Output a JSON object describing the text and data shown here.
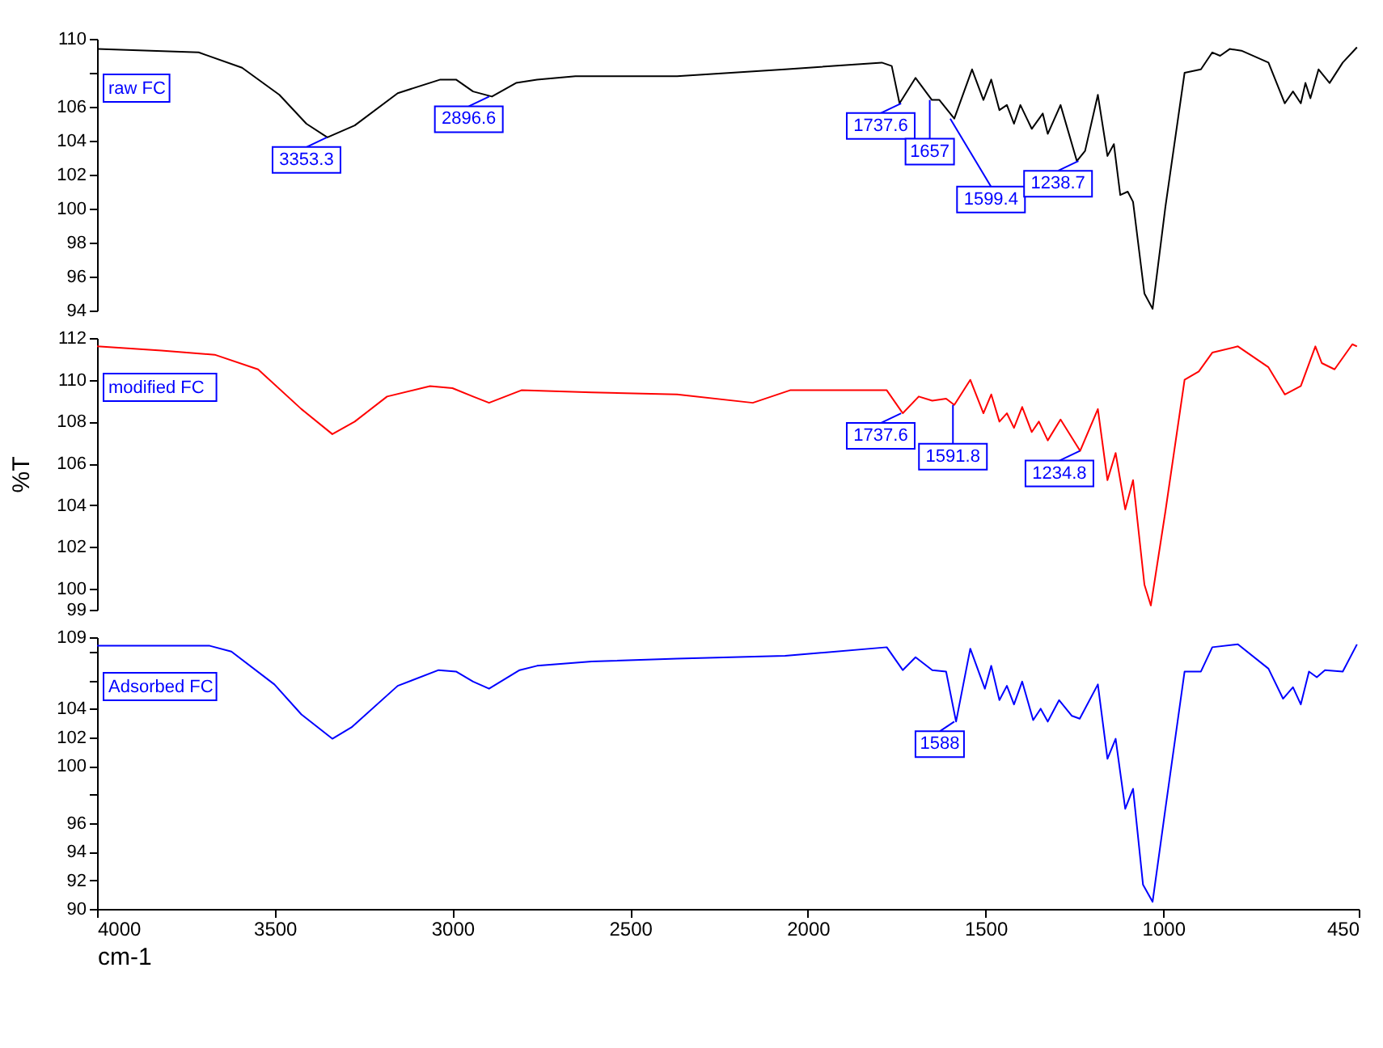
{
  "chart_data": [
    {
      "type": "line",
      "tick_labels": "y",
      "xlim": [
        4000,
        450
      ],
      "xticks": [
        4000,
        3500,
        3000,
        2500,
        2000,
        1500,
        1000,
        450
      ],
      "ylim": [
        94,
        110
      ],
      "yticks": [
        94,
        96,
        98,
        100,
        102,
        104,
        106,
        {
          "value": 108,
          "label": null
        },
        110
      ],
      "series": [
        {
          "name": "raw FC",
          "color": "#000000",
          "x": [
            4000,
            3714,
            3592,
            3487,
            3411,
            3352,
            3275,
            3154,
            3034,
            2990,
            2942,
            2889,
            2821,
            2762,
            2654,
            2368,
            2064,
            1792,
            1764,
            1742,
            1697,
            1651,
            1630,
            1588,
            1538,
            1506,
            1484,
            1461,
            1440,
            1420,
            1402,
            1370,
            1339,
            1325,
            1289,
            1243,
            1220,
            1184,
            1157,
            1139,
            1121,
            1100,
            1085,
            1053,
            1030,
            994,
            940,
            894,
            862,
            840,
            813,
            780,
            704,
            658,
            635,
            613,
            600,
            586,
            563,
            532,
            495,
            455
          ],
          "values": [
            109.4,
            109.2,
            108.3,
            106.7,
            105.0,
            104.2,
            104.9,
            106.8,
            107.6,
            107.6,
            106.9,
            106.6,
            107.4,
            107.6,
            107.8,
            107.8,
            108.2,
            108.6,
            108.4,
            106.2,
            107.7,
            106.4,
            106.4,
            105.3,
            108.2,
            106.4,
            107.6,
            105.8,
            106.1,
            105.0,
            106.1,
            104.7,
            105.6,
            104.4,
            106.1,
            102.8,
            103.4,
            106.7,
            103.1,
            103.8,
            100.8,
            101.0,
            100.4,
            95.0,
            94.1,
            100.1,
            108.0,
            108.2,
            109.2,
            109.0,
            109.4,
            109.3,
            108.6,
            106.2,
            106.9,
            106.2,
            107.4,
            106.5,
            108.2,
            107.4,
            108.6,
            109.5
          ]
        }
      ],
      "annotations": [
        {
          "text": "3353.3",
          "x": 3353.3,
          "y": 104.2
        },
        {
          "text": "2896.6",
          "x": 2896.6,
          "y": 106.6
        },
        {
          "text": "1737.6",
          "x": 1737.6,
          "y": 106.2
        },
        {
          "text": "1657",
          "x": 1657,
          "y": 106.4
        },
        {
          "text": "1599.4",
          "x": 1599.4,
          "y": 105.3
        },
        {
          "text": "1238.7",
          "x": 1238.7,
          "y": 102.8
        }
      ]
    },
    {
      "type": "line",
      "tick_labels": "y",
      "ylabel": "%T",
      "xlim": [
        4000,
        450
      ],
      "xticks": [
        4000,
        3500,
        3000,
        2500,
        2000,
        1500,
        1000,
        450
      ],
      "ylim": [
        99,
        112
      ],
      "yticks": [
        99,
        100,
        102,
        104,
        106,
        108,
        110,
        112
      ],
      "series": [
        {
          "name": "modified FC",
          "color": "#ff0000",
          "x": [
            4000,
            3819,
            3669,
            3547,
            3425,
            3338,
            3275,
            3184,
            3063,
            3000,
            2942,
            2897,
            2806,
            2608,
            2368,
            2155,
            2050,
            1778,
            1733,
            1688,
            1650,
            1611,
            1588,
            1543,
            1506,
            1484,
            1461,
            1440,
            1420,
            1397,
            1370,
            1350,
            1325,
            1289,
            1234,
            1184,
            1157,
            1134,
            1107,
            1085,
            1053,
            1035,
            994,
            940,
            900,
            862,
            790,
            704,
            658,
            613,
            572,
            554,
            518,
            468,
            455
          ],
          "values": [
            111.6,
            111.4,
            111.2,
            110.5,
            108.6,
            107.4,
            108.0,
            109.2,
            109.7,
            109.6,
            109.2,
            108.9,
            109.5,
            109.4,
            109.3,
            108.9,
            109.5,
            109.5,
            108.4,
            109.2,
            109.0,
            109.1,
            108.8,
            110.0,
            108.4,
            109.3,
            108.0,
            108.4,
            107.7,
            108.7,
            107.5,
            108.0,
            107.1,
            108.1,
            106.6,
            108.6,
            105.2,
            106.5,
            103.8,
            105.2,
            100.2,
            99.2,
            103.7,
            110.0,
            110.4,
            111.3,
            111.6,
            110.6,
            109.3,
            109.7,
            111.6,
            110.8,
            110.5,
            111.7,
            111.6
          ]
        }
      ],
      "annotations": [
        {
          "text": "1737.6",
          "x": 1737.6,
          "y": 108.4
        },
        {
          "text": "1591.8",
          "x": 1591.8,
          "y": 108.8
        },
        {
          "text": "1234.8",
          "x": 1234.8,
          "y": 106.6
        }
      ]
    },
    {
      "type": "line",
      "xlabel": "cm-1",
      "xlim": [
        4000,
        450
      ],
      "xticks": [
        4000,
        3500,
        3000,
        2500,
        2000,
        1500,
        1000,
        450
      ],
      "ylim": [
        90,
        109
      ],
      "yticks": [
        90,
        92,
        94,
        96,
        {
          "value": 98,
          "label": null
        },
        100,
        102,
        104,
        {
          "value": 106,
          "label": null
        },
        {
          "value": 108,
          "label": null
        },
        109
      ],
      "series": [
        {
          "name": "Adsorbed FC",
          "color": "#0000ff",
          "x": [
            4000,
            3683,
            3622,
            3501,
            3425,
            3338,
            3284,
            3154,
            3039,
            2990,
            2942,
            2897,
            2811,
            2762,
            2608,
            2368,
            2064,
            1778,
            1733,
            1697,
            1650,
            1611,
            1583,
            1543,
            1502,
            1484,
            1461,
            1440,
            1420,
            1397,
            1366,
            1345,
            1325,
            1293,
            1257,
            1235,
            1184,
            1157,
            1134,
            1107,
            1085,
            1057,
            1030,
            994,
            940,
            894,
            862,
            790,
            704,
            663,
            635,
            613,
            590,
            568,
            545,
            495,
            455
          ],
          "values": [
            108.4,
            108.4,
            108.0,
            105.7,
            103.6,
            101.9,
            102.7,
            105.6,
            106.7,
            106.6,
            105.9,
            105.4,
            106.7,
            107.0,
            107.3,
            107.5,
            107.7,
            108.3,
            106.7,
            107.6,
            106.7,
            106.6,
            103.1,
            108.2,
            105.4,
            107.0,
            104.6,
            105.6,
            104.3,
            105.9,
            103.2,
            104.0,
            103.1,
            104.6,
            103.5,
            103.3,
            105.7,
            100.5,
            101.9,
            97.0,
            98.4,
            91.7,
            90.5,
            97.0,
            106.6,
            106.6,
            108.3,
            108.5,
            106.8,
            104.7,
            105.5,
            104.3,
            106.6,
            106.2,
            106.7,
            106.6,
            108.5
          ]
        }
      ],
      "annotations": [
        {
          "text": "1588",
          "x": 1588,
          "y": 103.1
        }
      ]
    }
  ]
}
